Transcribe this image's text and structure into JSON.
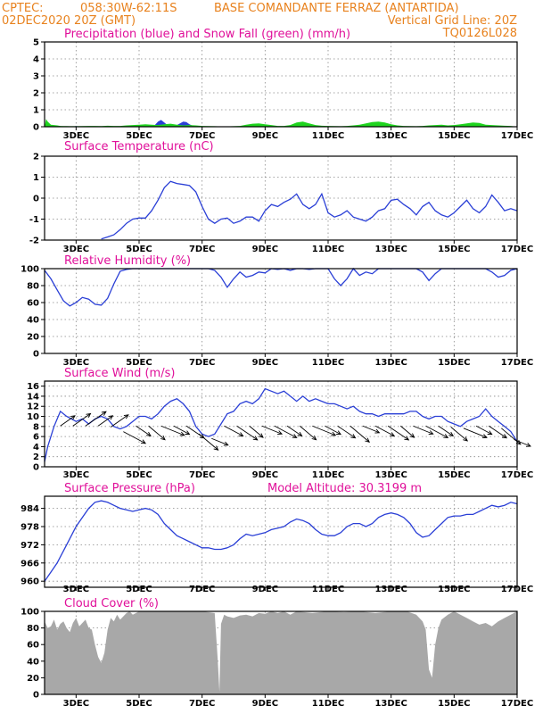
{
  "header": {
    "line1_left": "CPTEC:",
    "line1_coords": "058:30W-62:11S",
    "line1_station": "BASE COMANDANTE FERRAZ (ANTARTIDA)",
    "line2_left": "02DEC2020 20Z (GMT)",
    "line2_right": "Vertical Grid Line: 20Z",
    "line3_right": "TQ0126L028"
  },
  "colors": {
    "header": "#e8821e",
    "title": "#e0109a",
    "blue": "#2a3fd6",
    "green": "#1fd41f",
    "gray": "#a8a8a8"
  },
  "x_tick_labels": [
    "3DEC",
    "5DEC",
    "7DEC",
    "9DEC",
    "11DEC",
    "13DEC",
    "15DEC",
    "17DEC"
  ],
  "chart_data": [
    {
      "type": "area",
      "title": "Precipitation (blue) and Snow Fall (green) (mm/h)",
      "ylim": [
        0,
        5
      ],
      "yticks": [
        0,
        1,
        2,
        3,
        4,
        5
      ],
      "series": [
        {
          "name": "Precipitation",
          "color": "blue",
          "x": [
            2.9,
            3.0,
            3.1,
            4.7,
            4.8,
            4.9,
            5.0,
            5.1,
            5.2,
            5.3,
            5.4,
            5.5,
            5.6,
            5.7,
            5.8,
            5.9,
            6.0,
            6.1,
            6.2,
            6.3,
            6.4,
            6.5,
            6.6,
            6.7,
            6.8
          ],
          "y": [
            0,
            0.05,
            0,
            0,
            0.03,
            0.04,
            0.05,
            0.06,
            0.07,
            0.08,
            0.1,
            0.1,
            0.3,
            0.4,
            0.25,
            0.1,
            0.06,
            0.05,
            0.1,
            0.2,
            0.3,
            0.28,
            0.15,
            0.06,
            0
          ]
        },
        {
          "name": "Snow Fall",
          "color": "green",
          "x": [
            2.0,
            2.05,
            2.1,
            2.2,
            2.3,
            2.4,
            2.5,
            2.6,
            2.7,
            2.8,
            3.0,
            3.2,
            3.4,
            3.6,
            3.8,
            4.0,
            4.2,
            4.4,
            4.6,
            4.8,
            5.0,
            5.2,
            5.4,
            5.6,
            5.8,
            6.0,
            6.2,
            6.4,
            6.6,
            6.8,
            7.0,
            7.2,
            7.4,
            7.6,
            7.8,
            8.0,
            8.2,
            8.4,
            8.6,
            8.8,
            9.0,
            9.2,
            9.4,
            9.6,
            9.8,
            10.0,
            10.2,
            10.4,
            10.6,
            10.8,
            11.0,
            11.2,
            11.4,
            11.6,
            11.8,
            12.0,
            12.2,
            12.4,
            12.6,
            12.8,
            13.0,
            13.2,
            13.4,
            13.6,
            13.8,
            14.0,
            14.2,
            14.4,
            14.6,
            14.8,
            15.0,
            15.2,
            15.4,
            15.6,
            15.8,
            16.0,
            16.2,
            16.4,
            16.6,
            16.8,
            17.0
          ],
          "y": [
            0,
            0.45,
            0.3,
            0.12,
            0.1,
            0.08,
            0.05,
            0.04,
            0.04,
            0.03,
            0.03,
            0.04,
            0.05,
            0.05,
            0.04,
            0.06,
            0.05,
            0.05,
            0.08,
            0.1,
            0.12,
            0.15,
            0.12,
            0.1,
            0.15,
            0.18,
            0.12,
            0.08,
            0.1,
            0.08,
            0.05,
            0.04,
            0.03,
            0.02,
            0.02,
            0.03,
            0.05,
            0.12,
            0.18,
            0.2,
            0.15,
            0.1,
            0.05,
            0.05,
            0.1,
            0.25,
            0.3,
            0.2,
            0.1,
            0.06,
            0.05,
            0.04,
            0.03,
            0.05,
            0.08,
            0.12,
            0.2,
            0.28,
            0.3,
            0.25,
            0.15,
            0.08,
            0.05,
            0.04,
            0.03,
            0.05,
            0.08,
            0.1,
            0.12,
            0.08,
            0.1,
            0.15,
            0.2,
            0.25,
            0.22,
            0.12,
            0.1,
            0.08,
            0.06,
            0.05,
            0
          ]
        }
      ]
    },
    {
      "type": "line",
      "title": "Surface Temperature (nC)",
      "ylim": [
        -2,
        2
      ],
      "yticks": [
        -2,
        -1,
        0,
        1,
        2
      ],
      "series": [
        {
          "color": "blue",
          "x": [
            3.8,
            4.0,
            4.2,
            4.4,
            4.6,
            4.8,
            5.0,
            5.2,
            5.4,
            5.6,
            5.8,
            6.0,
            6.2,
            6.4,
            6.6,
            6.8,
            7.0,
            7.2,
            7.4,
            7.6,
            7.8,
            8.0,
            8.2,
            8.4,
            8.6,
            8.8,
            9.0,
            9.2,
            9.4,
            9.6,
            9.8,
            10.0,
            10.2,
            10.4,
            10.6,
            10.8,
            11.0,
            11.2,
            11.4,
            11.6,
            11.8,
            12.0,
            12.2,
            12.4,
            12.6,
            12.8,
            13.0,
            13.2,
            13.4,
            13.6,
            13.8,
            14.0,
            14.2,
            14.4,
            14.6,
            14.8,
            15.0,
            15.2,
            15.4,
            15.6,
            15.8,
            16.0,
            16.2,
            16.4,
            16.6,
            16.8,
            17.0
          ],
          "y": [
            -1.95,
            -1.85,
            -1.75,
            -1.5,
            -1.2,
            -1.0,
            -0.95,
            -0.95,
            -0.6,
            -0.1,
            0.5,
            0.8,
            0.7,
            0.65,
            0.6,
            0.3,
            -0.4,
            -1.0,
            -1.2,
            -1.0,
            -0.95,
            -1.2,
            -1.1,
            -0.9,
            -0.9,
            -1.1,
            -0.6,
            -0.3,
            -0.4,
            -0.2,
            -0.05,
            0.2,
            -0.3,
            -0.5,
            -0.3,
            0.2,
            -0.7,
            -0.9,
            -0.8,
            -0.6,
            -0.9,
            -1.0,
            -1.1,
            -0.9,
            -0.6,
            -0.5,
            -0.1,
            -0.05,
            -0.3,
            -0.5,
            -0.8,
            -0.4,
            -0.2,
            -0.6,
            -0.8,
            -0.9,
            -0.7,
            -0.4,
            -0.1,
            -0.5,
            -0.7,
            -0.4,
            0.15,
            -0.2,
            -0.6,
            -0.5,
            -0.6
          ]
        }
      ]
    },
    {
      "type": "line",
      "title": "Relative Humidity (%)",
      "ylim": [
        0,
        100
      ],
      "yticks": [
        0,
        20,
        40,
        60,
        80,
        100
      ],
      "series": [
        {
          "color": "blue",
          "x": [
            2.0,
            2.2,
            2.4,
            2.6,
            2.8,
            3.0,
            3.2,
            3.4,
            3.6,
            3.8,
            4.0,
            4.2,
            4.4,
            4.6,
            4.8,
            5.0,
            5.2,
            5.4,
            5.6,
            5.8,
            6.0,
            6.2,
            6.4,
            6.6,
            6.8,
            7.0,
            7.2,
            7.4,
            7.6,
            7.8,
            8.0,
            8.2,
            8.4,
            8.6,
            8.8,
            9.0,
            9.2,
            9.4,
            9.6,
            9.8,
            10.0,
            10.2,
            10.4,
            10.6,
            10.8,
            11.0,
            11.2,
            11.4,
            11.6,
            11.8,
            12.0,
            12.2,
            12.4,
            12.6,
            12.8,
            13.0,
            13.2,
            13.4,
            13.6,
            13.8,
            14.0,
            14.2,
            14.4,
            14.6,
            14.8,
            15.0,
            15.2,
            15.4,
            15.6,
            15.8,
            16.0,
            16.2,
            16.4,
            16.6,
            16.8,
            17.0
          ],
          "y": [
            98,
            88,
            75,
            62,
            56,
            60,
            66,
            64,
            58,
            57,
            65,
            82,
            97,
            99,
            100,
            100,
            100,
            100,
            100,
            100,
            100,
            100,
            100,
            100,
            100,
            100,
            100,
            98,
            90,
            78,
            88,
            96,
            90,
            92,
            96,
            95,
            100,
            99,
            100,
            98,
            100,
            100,
            99,
            100,
            100,
            100,
            88,
            80,
            88,
            100,
            92,
            96,
            94,
            100,
            100,
            100,
            100,
            100,
            100,
            100,
            96,
            86,
            94,
            100,
            100,
            100,
            100,
            100,
            100,
            100,
            100,
            96,
            90,
            92,
            98,
            100
          ]
        }
      ]
    },
    {
      "type": "line",
      "title": "Surface Wind (m/s)",
      "ylim": [
        0,
        17
      ],
      "yticks": [
        0,
        2,
        4,
        6,
        8,
        10,
        12,
        14,
        16
      ],
      "series": [
        {
          "color": "blue",
          "x": [
            2.0,
            2.1,
            2.3,
            2.5,
            2.7,
            3.0,
            3.2,
            3.4,
            3.6,
            3.8,
            4.0,
            4.2,
            4.4,
            4.6,
            4.8,
            5.0,
            5.2,
            5.4,
            5.6,
            5.8,
            6.0,
            6.2,
            6.4,
            6.6,
            6.8,
            7.0,
            7.2,
            7.4,
            7.6,
            7.8,
            8.0,
            8.2,
            8.4,
            8.6,
            8.8,
            9.0,
            9.2,
            9.4,
            9.6,
            9.8,
            10.0,
            10.2,
            10.4,
            10.6,
            10.8,
            11.0,
            11.2,
            11.4,
            11.6,
            11.8,
            12.0,
            12.2,
            12.4,
            12.6,
            12.8,
            13.0,
            13.2,
            13.4,
            13.6,
            13.8,
            14.0,
            14.2,
            14.4,
            14.6,
            14.8,
            15.0,
            15.2,
            15.4,
            15.6,
            15.8,
            16.0,
            16.2,
            16.4,
            16.6,
            16.8,
            17.0
          ],
          "y": [
            1,
            4,
            8,
            11,
            10,
            9,
            9.5,
            8.5,
            9.5,
            10,
            9.5,
            8,
            7.5,
            8,
            9,
            10,
            10,
            9.5,
            10.5,
            12,
            13,
            13.5,
            12.5,
            11,
            8,
            6.5,
            6,
            6.5,
            8.5,
            10.5,
            11,
            12.5,
            13,
            12.5,
            13.5,
            15.5,
            15,
            14.5,
            15,
            14,
            13,
            14,
            13,
            13.5,
            13,
            12.5,
            12.5,
            12,
            11.5,
            12,
            11,
            10.5,
            10.5,
            10,
            10.5,
            10.5,
            10.5,
            10.5,
            11,
            11,
            10,
            9.5,
            10,
            10,
            9,
            8.5,
            8,
            9,
            9.5,
            10,
            11.5,
            10,
            9,
            8,
            7,
            5
          ]
        }
      ],
      "arrows_x": [
        2.5,
        2.9,
        3.3,
        3.7,
        4.1,
        4.5,
        4.9,
        5.3,
        5.7,
        6.1,
        6.5,
        6.9,
        7.3,
        7.7,
        8.1,
        8.5,
        8.9,
        9.3,
        9.7,
        10.1,
        10.5,
        10.9,
        11.3,
        11.7,
        12.1,
        12.5,
        12.9,
        13.3,
        13.7,
        14.1,
        14.5,
        14.9,
        15.3,
        15.7,
        16.1,
        16.5,
        16.9
      ]
    },
    {
      "type": "line",
      "title": "Surface Pressure (hPa)",
      "subtitle": "Model Altitude: 30.3199 m",
      "ylim": [
        958,
        988
      ],
      "yticks": [
        960,
        966,
        972,
        978,
        984
      ],
      "series": [
        {
          "color": "blue",
          "x": [
            2.0,
            2.2,
            2.4,
            2.6,
            2.8,
            3.0,
            3.2,
            3.4,
            3.6,
            3.8,
            4.0,
            4.2,
            4.4,
            4.6,
            4.8,
            5.0,
            5.2,
            5.4,
            5.6,
            5.8,
            6.0,
            6.2,
            6.4,
            6.6,
            6.8,
            7.0,
            7.2,
            7.4,
            7.6,
            7.8,
            8.0,
            8.2,
            8.4,
            8.6,
            8.8,
            9.0,
            9.2,
            9.4,
            9.6,
            9.8,
            10.0,
            10.2,
            10.4,
            10.6,
            10.8,
            11.0,
            11.2,
            11.4,
            11.6,
            11.8,
            12.0,
            12.2,
            12.4,
            12.6,
            12.8,
            13.0,
            13.2,
            13.4,
            13.6,
            13.8,
            14.0,
            14.2,
            14.4,
            14.6,
            14.8,
            15.0,
            15.2,
            15.4,
            15.6,
            15.8,
            16.0,
            16.2,
            16.4,
            16.6,
            16.8,
            17.0
          ],
          "y": [
            960,
            963,
            966,
            970,
            974,
            978,
            981,
            984,
            986,
            986.5,
            986,
            985,
            984,
            983.5,
            983,
            983.5,
            984,
            983.5,
            982,
            979,
            977,
            975,
            974,
            973,
            972,
            971,
            971,
            970.5,
            970.5,
            971,
            972,
            974,
            975.5,
            975,
            975.5,
            976,
            977,
            977.5,
            978,
            979.5,
            980.5,
            980,
            979,
            977,
            975.5,
            975,
            975,
            976,
            978,
            979,
            979,
            978,
            979,
            981,
            982,
            982.5,
            982,
            981,
            979,
            976,
            974.5,
            975,
            977,
            979,
            981,
            981.5,
            981.5,
            982,
            982,
            983,
            984,
            985,
            984.5,
            985,
            986,
            985.5
          ]
        }
      ]
    },
    {
      "type": "area",
      "title": "Cloud Cover (%)",
      "ylim": [
        0,
        100
      ],
      "yticks": [
        0,
        20,
        40,
        60,
        80,
        100
      ],
      "series": [
        {
          "color": "gray",
          "x": [
            2.0,
            2.1,
            2.2,
            2.3,
            2.4,
            2.5,
            2.6,
            2.7,
            2.8,
            2.9,
            3.0,
            3.1,
            3.2,
            3.3,
            3.4,
            3.5,
            3.6,
            3.7,
            3.8,
            3.9,
            4.0,
            4.1,
            4.2,
            4.3,
            4.4,
            4.5,
            4.6,
            4.7,
            4.8,
            4.9,
            5.0,
            5.5,
            6.0,
            6.5,
            7.0,
            7.4,
            7.5,
            7.55,
            7.6,
            7.7,
            7.8,
            8.0,
            8.2,
            8.4,
            8.6,
            8.8,
            9.0,
            9.2,
            9.4,
            9.6,
            9.8,
            10.0,
            10.5,
            11.0,
            11.5,
            12.0,
            12.5,
            13.0,
            13.5,
            13.8,
            14.0,
            14.1,
            14.2,
            14.3,
            14.4,
            14.5,
            14.6,
            14.8,
            15.0,
            15.2,
            15.4,
            15.6,
            15.8,
            16.0,
            16.2,
            16.4,
            16.6,
            16.8,
            17.0
          ],
          "y": [
            88,
            80,
            82,
            90,
            78,
            85,
            88,
            80,
            75,
            86,
            92,
            82,
            86,
            90,
            80,
            78,
            60,
            45,
            38,
            50,
            78,
            92,
            88,
            96,
            90,
            94,
            98,
            100,
            96,
            98,
            100,
            100,
            100,
            100,
            100,
            98,
            40,
            3,
            85,
            96,
            94,
            92,
            95,
            96,
            94,
            98,
            97,
            100,
            98,
            100,
            96,
            100,
            98,
            100,
            99,
            100,
            98,
            100,
            100,
            96,
            88,
            78,
            30,
            20,
            60,
            80,
            90,
            96,
            100,
            96,
            92,
            88,
            84,
            86,
            82,
            88,
            92,
            96,
            100
          ]
        }
      ]
    }
  ]
}
